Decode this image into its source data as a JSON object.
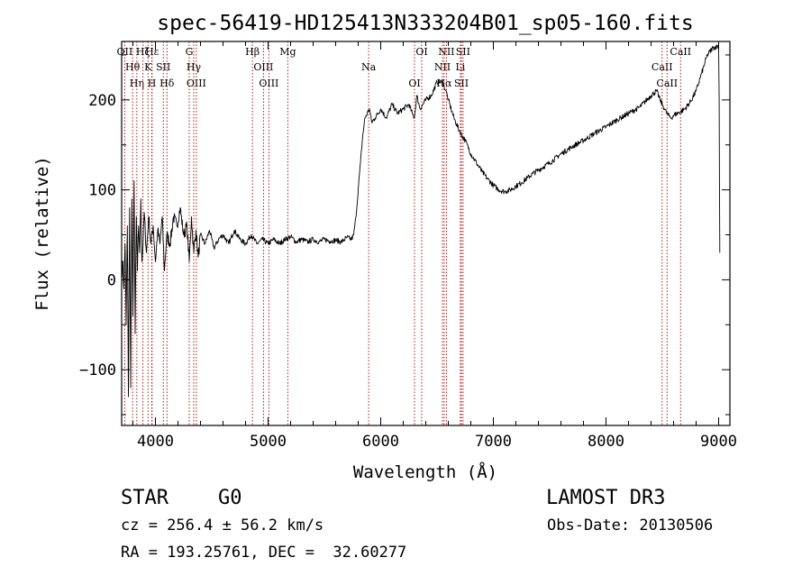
{
  "chart_data": {
    "type": "line",
    "title": "spec-56419-HD125413N333204B01_sp05-160.fits",
    "xlabel": "Wavelength (Å)",
    "ylabel": "Flux (relative)",
    "xlim": [
      3700,
      9100
    ],
    "ylim": [
      -162,
      265
    ],
    "x_ticks": [
      4000,
      5000,
      6000,
      7000,
      8000,
      9000
    ],
    "y_ticks": [
      -100,
      0,
      100,
      200
    ],
    "x_tick_labels": [
      "4000",
      "5000",
      "6000",
      "7000",
      "8000",
      "9000"
    ],
    "y_tick_labels": [
      "−100",
      "0",
      "100",
      "200"
    ],
    "series": [
      {
        "x": [
          3700,
          3710,
          3720,
          3730,
          3740,
          3750,
          3760,
          3770,
          3780,
          3790,
          3800,
          3810,
          3820,
          3830,
          3840,
          3850,
          3860,
          3870,
          3880,
          3890,
          3900,
          3920,
          3940,
          3960,
          3980,
          4000,
          4020,
          4040,
          4060,
          4080,
          4100,
          4130,
          4160,
          4190,
          4220,
          4250,
          4280,
          4300,
          4320,
          4340,
          4360,
          4380,
          4400,
          4440,
          4480,
          4520,
          4560,
          4600,
          4650,
          4700,
          4750,
          4800,
          4850,
          4900,
          4950,
          5000,
          5050,
          5100,
          5150,
          5200,
          5250,
          5300,
          5350,
          5400,
          5450,
          5500,
          5550,
          5600,
          5650,
          5700,
          5740,
          5760,
          5780,
          5800,
          5820,
          5840,
          5860,
          5880,
          5900,
          5920,
          5950,
          6000,
          6050,
          6100,
          6150,
          6200,
          6250,
          6280,
          6300,
          6320,
          6350,
          6400,
          6450,
          6500,
          6540,
          6563,
          6580,
          6600,
          6650,
          6700,
          6750,
          6800,
          6850,
          6900,
          6950,
          7000,
          7050,
          7100,
          7150,
          7200,
          7250,
          7300,
          7350,
          7400,
          7500,
          7600,
          7700,
          7800,
          7900,
          8000,
          8100,
          8200,
          8300,
          8400,
          8450,
          8480,
          8500,
          8520,
          8540,
          8560,
          8580,
          8600,
          8650,
          8700,
          8750,
          8800,
          8850,
          8900,
          8950,
          9000,
          9005,
          9010
        ],
        "y": [
          5,
          20,
          -10,
          40,
          -50,
          60,
          -130,
          80,
          -120,
          90,
          -40,
          110,
          -60,
          70,
          10,
          60,
          30,
          90,
          20,
          40,
          75,
          30,
          70,
          40,
          60,
          20,
          55,
          40,
          70,
          10,
          50,
          40,
          70,
          60,
          80,
          50,
          60,
          20,
          70,
          30,
          55,
          25,
          50,
          40,
          55,
          35,
          45,
          50,
          40,
          55,
          45,
          40,
          50,
          40,
          45,
          40,
          45,
          40,
          45,
          48,
          42,
          45,
          42,
          45,
          42,
          45,
          43,
          44,
          42,
          47,
          45,
          50,
          70,
          100,
          130,
          160,
          180,
          185,
          190,
          175,
          180,
          190,
          180,
          195,
          185,
          190,
          195,
          185,
          180,
          205,
          190,
          200,
          205,
          220,
          220,
          215,
          210,
          200,
          180,
          165,
          155,
          140,
          130,
          120,
          112,
          105,
          100,
          98,
          100,
          104,
          108,
          113,
          118,
          122,
          130,
          140,
          148,
          155,
          163,
          170,
          178,
          185,
          192,
          205,
          210,
          200,
          195,
          190,
          185,
          182,
          180,
          183,
          186,
          190,
          198,
          210,
          230,
          250,
          258,
          260,
          200,
          30
        ]
      }
    ],
    "line_markers": [
      {
        "label": "OII",
        "x": 3727
      },
      {
        "label": "Hθ",
        "x": 3797
      },
      {
        "label": "Hη",
        "x": 3835
      },
      {
        "label": "Hζ",
        "x": 3889
      },
      {
        "label": "K",
        "x": 3934
      },
      {
        "label": "H",
        "x": 3968
      },
      {
        "label": "Hε",
        "x": 3970
      },
      {
        "label": "SII",
        "x": 4070
      },
      {
        "label": "Hδ",
        "x": 4102
      },
      {
        "label": "G",
        "x": 4300
      },
      {
        "label": "Hγ",
        "x": 4340
      },
      {
        "label": "OIII",
        "x": 4363
      },
      {
        "label": "Hβ",
        "x": 4861
      },
      {
        "label": "OIII",
        "x": 4959
      },
      {
        "label": "OIII",
        "x": 5007
      },
      {
        "label": "Mg",
        "x": 5175
      },
      {
        "label": "Na",
        "x": 5893
      },
      {
        "label": "OI",
        "x": 6300
      },
      {
        "label": "OI",
        "x": 6364
      },
      {
        "label": "NII",
        "x": 6548
      },
      {
        "label": "Hα",
        "x": 6563
      },
      {
        "label": "NII",
        "x": 6583
      },
      {
        "label": "Li",
        "x": 6707
      },
      {
        "label": "SII",
        "x": 6716
      },
      {
        "label": "SII",
        "x": 6731
      },
      {
        "label": "CaII",
        "x": 8498
      },
      {
        "label": "CaII",
        "x": 8542
      },
      {
        "label": "CaII",
        "x": 8662
      }
    ]
  },
  "info": {
    "object_type": "STAR",
    "subclass": "G0",
    "survey": "LAMOST DR3",
    "redshift": "cz = 256.4 ± 56.2 km/s",
    "obs_date": "Obs-Date: 20130506",
    "coords": "RA = 193.25761, DEC =  32.60277"
  },
  "colors": {
    "spectrum": "#000000",
    "marker_line": "#aa0000",
    "axes": "#000000"
  }
}
